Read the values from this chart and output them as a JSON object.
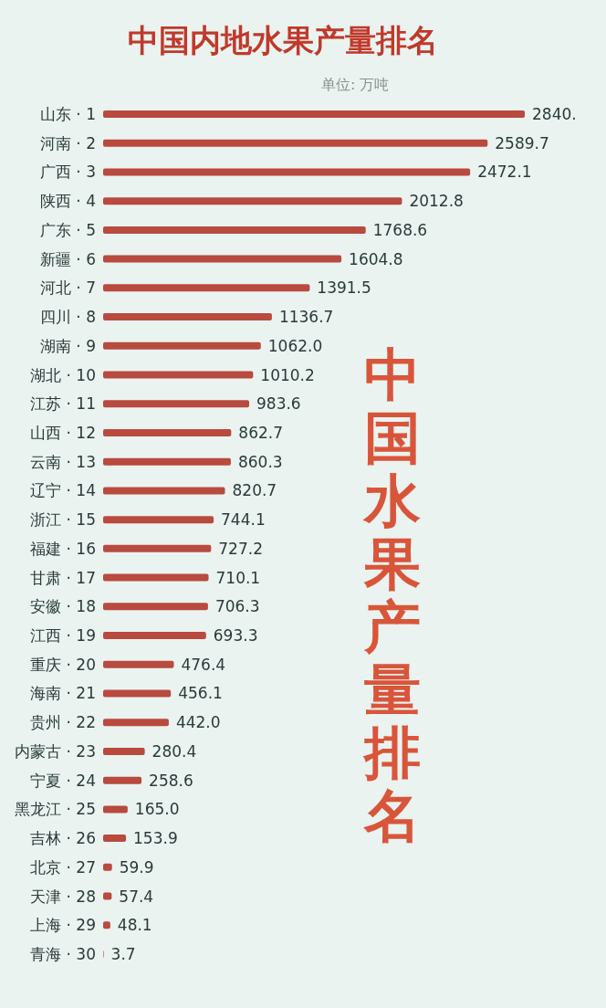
{
  "chart_data": {
    "type": "bar",
    "orientation": "horizontal",
    "title": "中国内地水果产量排名",
    "subtitle": "单位: 万吨",
    "annotations": [
      "中国水果产量排名"
    ],
    "categories": [
      "山东 · 1",
      "河南 · 2",
      "广西 · 3",
      "陕西 · 4",
      "广东 · 5",
      "新疆 · 6",
      "河北 · 7",
      "四川 · 8",
      "湖南 · 9",
      "湖北 · 10",
      "江苏 · 11",
      "山西 · 12",
      "云南 · 13",
      "辽宁 · 14",
      "浙江 · 15",
      "福建 · 16",
      "甘肃 · 17",
      "安徽 · 18",
      "江西 · 19",
      "重庆 · 20",
      "海南 · 21",
      "贵州 · 22",
      "内蒙古 · 23",
      "宁夏 · 24",
      "黑龙江 · 25",
      "吉林 · 26",
      "北京 · 27",
      "天津 · 28",
      "上海 · 29",
      "青海 · 30"
    ],
    "values": [
      2840,
      2589.7,
      2472.1,
      2012.8,
      1768.6,
      1604.8,
      1391.5,
      1136.7,
      1062.0,
      1010.2,
      983.6,
      862.7,
      860.3,
      820.7,
      744.1,
      727.2,
      710.1,
      706.3,
      693.3,
      476.4,
      456.1,
      442.0,
      280.4,
      258.6,
      165.0,
      153.9,
      59.9,
      57.4,
      48.1,
      3.7
    ],
    "value_labels": [
      "2840.",
      "2589.7",
      "2472.1",
      "2012.8",
      "1768.6",
      "1604.8",
      "1391.5",
      "1136.7",
      "1062.0",
      "1010.2",
      "983.6",
      "862.7",
      "860.3",
      "820.7",
      "744.1",
      "727.2",
      "710.1",
      "706.3",
      "693.3",
      "476.4",
      "456.1",
      "442.0",
      "280.4",
      "258.6",
      "165.0",
      "153.9",
      "59.9",
      "57.4",
      "48.1",
      "3.7"
    ],
    "color": "#b84a3e"
  }
}
